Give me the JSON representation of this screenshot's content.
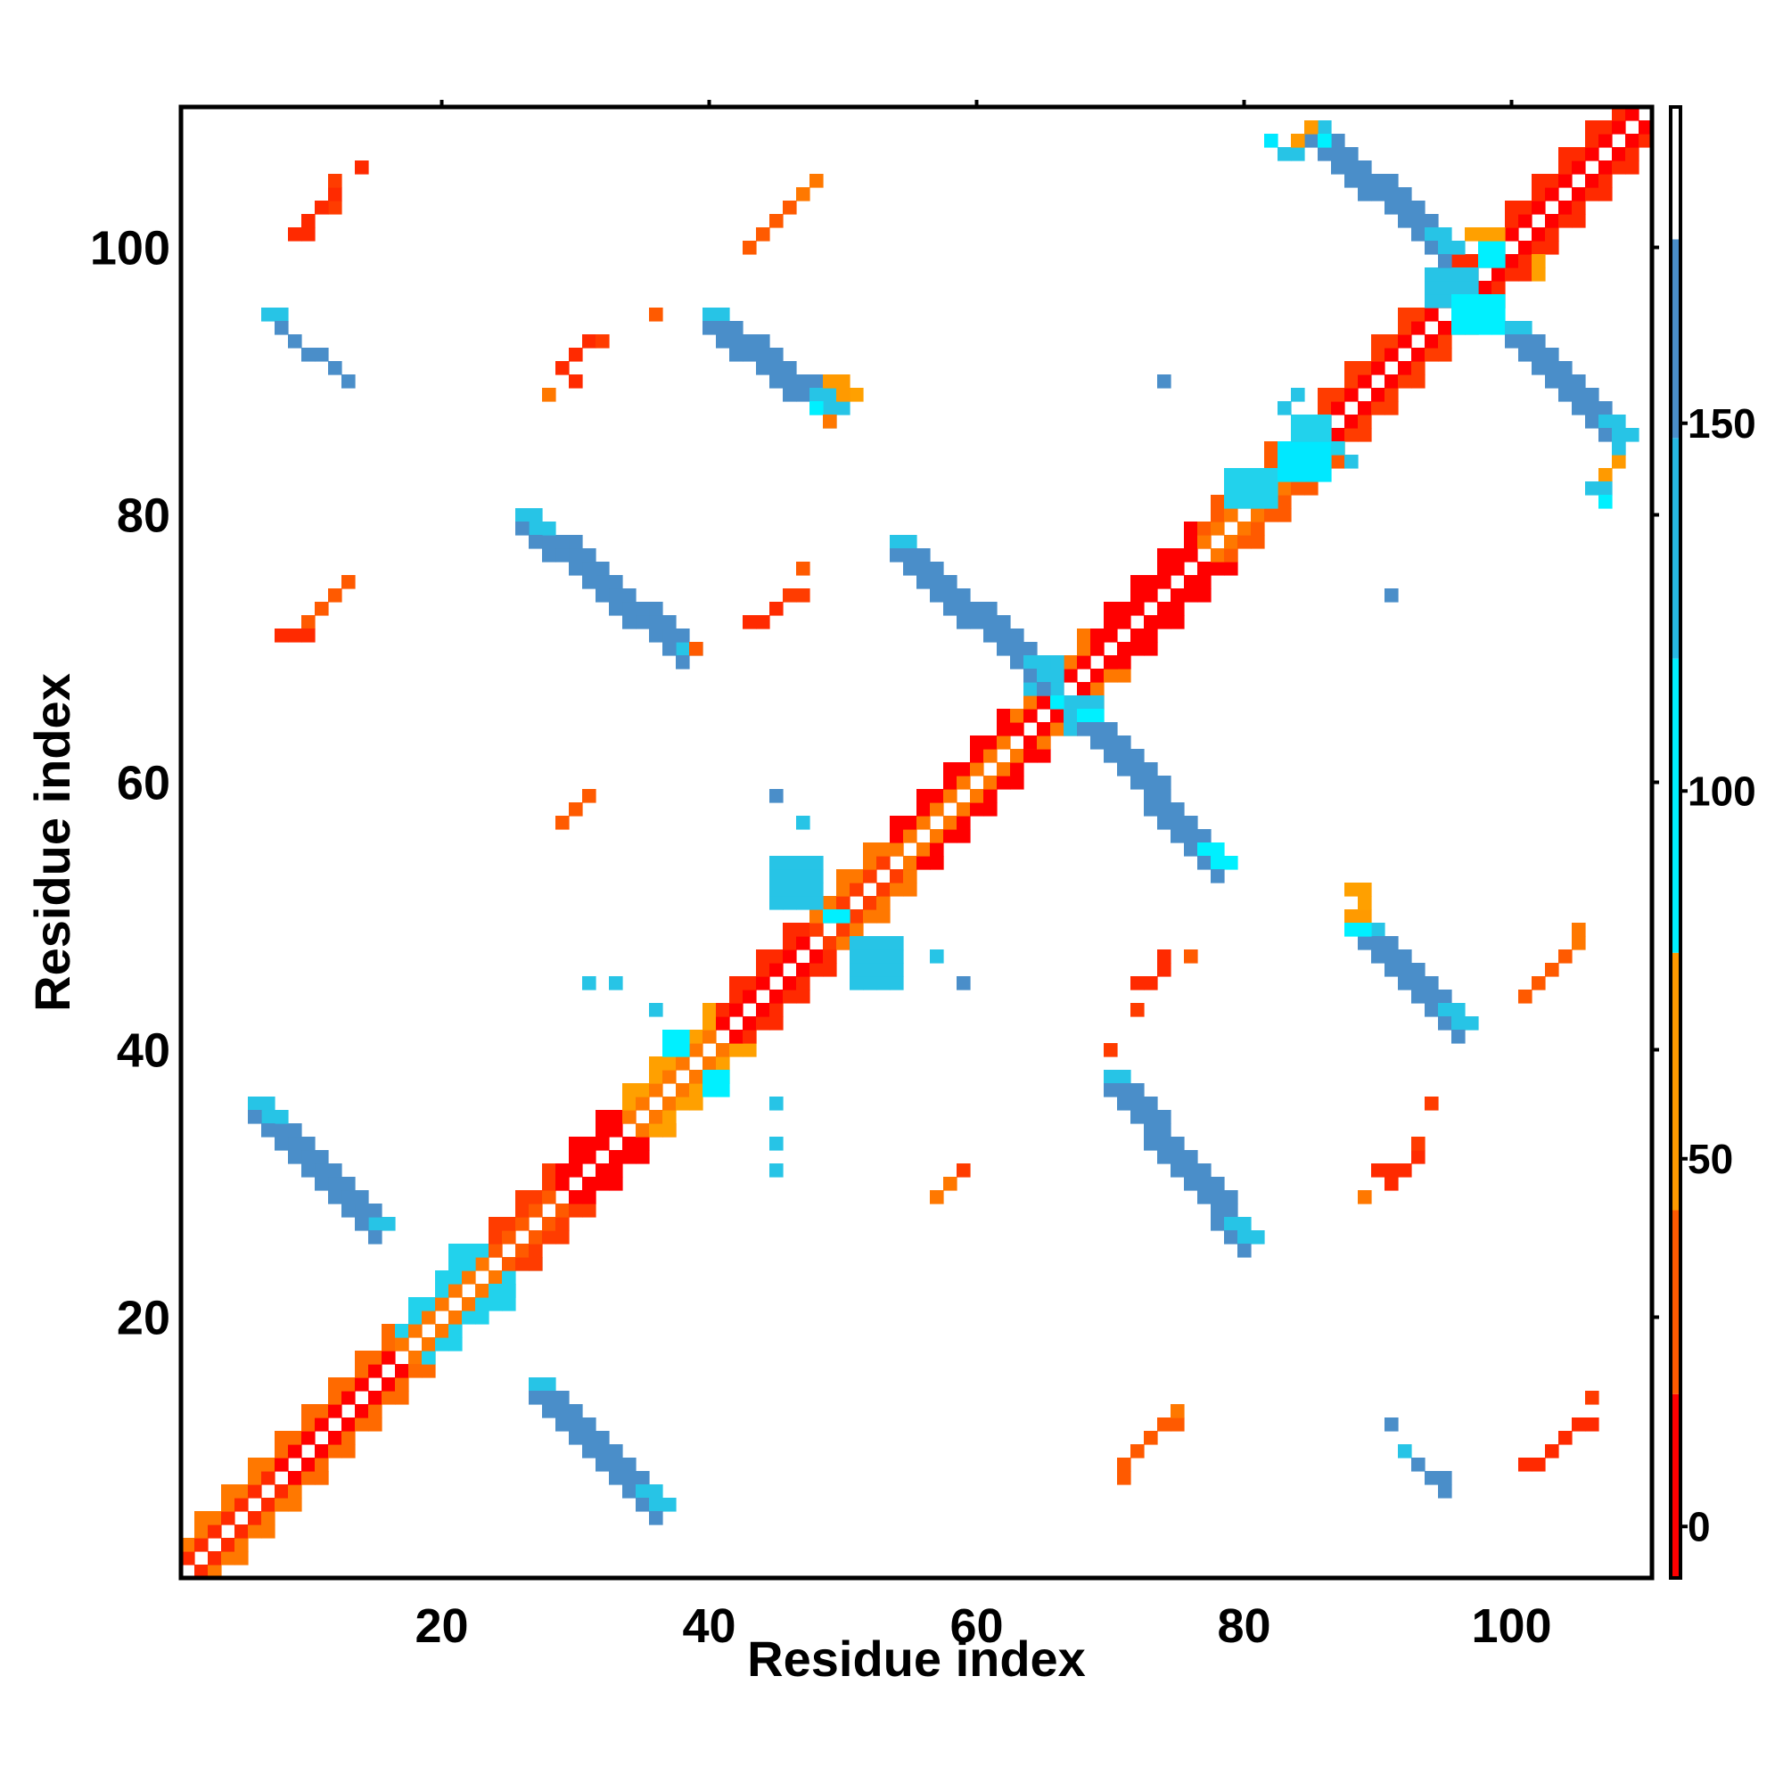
{
  "chart_data": {
    "type": "heatmap",
    "title": "",
    "xlabel": "Residue index",
    "ylabel": "Residue index",
    "xlim": [
      1,
      110
    ],
    "ylim": [
      1,
      110
    ],
    "x_ticks": [
      20,
      40,
      60,
      80,
      100
    ],
    "y_ticks": [
      20,
      40,
      60,
      80,
      100
    ],
    "grid": false,
    "colorbar": {
      "ticks": [
        0,
        50,
        100,
        150
      ],
      "range": [
        -7,
        193
      ],
      "bands": [
        {
          "from": -7,
          "to": 18,
          "color": "#ff0000"
        },
        {
          "from": 18,
          "to": 43,
          "color": "#ff5a00"
        },
        {
          "from": 43,
          "to": 78,
          "color": "#ff9a00"
        },
        {
          "from": 78,
          "to": 118,
          "color": "#00f0ff"
        },
        {
          "from": 118,
          "to": 148,
          "color": "#27b8e3"
        },
        {
          "from": 148,
          "to": 175,
          "color": "#4a8ec9"
        },
        {
          "from": 175,
          "to": 193,
          "color": "#ffffff"
        }
      ]
    },
    "colors": {
      "red": "#ff0000",
      "red_orange": "#ff3c00",
      "orange": "#ff7800",
      "amber": "#ffa000",
      "cyan": "#00e8ff",
      "light_blue": "#2cc0e4",
      "steel_blue": "#4a8ec9"
    },
    "diagonal_segments": [
      {
        "from": 1,
        "to": 8,
        "c1": "#ff2a00",
        "c2": "#ff7800"
      },
      {
        "from": 8,
        "to": 17,
        "c1": "#ff0000",
        "c2": "#ff6a00"
      },
      {
        "from": 17,
        "to": 24,
        "c1": "#ff7800",
        "c2": "#22d2ec"
      },
      {
        "from": 24,
        "to": 29,
        "c1": "#ff5a00",
        "c2": "#ff3c00"
      },
      {
        "from": 29,
        "to": 34,
        "c1": "#ff0000",
        "c2": "#ff0000"
      },
      {
        "from": 34,
        "to": 41,
        "c1": "#ff7800",
        "c2": "#ffa000"
      },
      {
        "from": 41,
        "to": 48,
        "c1": "#ff0000",
        "c2": "#ff2a00"
      },
      {
        "from": 48,
        "to": 54,
        "c1": "#ff3c00",
        "c2": "#ff7800"
      },
      {
        "from": 54,
        "to": 63,
        "c1": "#ff7800",
        "c2": "#ff0000"
      },
      {
        "from": 63,
        "to": 69,
        "c1": "#ff0000",
        "c2": "#ff7800"
      },
      {
        "from": 69,
        "to": 77,
        "c1": "#ff0000",
        "c2": "#ff0000"
      },
      {
        "from": 77,
        "to": 85,
        "c1": "#ff7800",
        "c2": "#ff5a00"
      },
      {
        "from": 85,
        "to": 95,
        "c1": "#ff0000",
        "c2": "#ff3c00"
      },
      {
        "from": 95,
        "to": 110,
        "c1": "#ff0000",
        "c2": "#ff2a00"
      }
    ],
    "diagonal_blobs": [
      {
        "x": 21,
        "y": 24,
        "w": 2,
        "h": 2,
        "color": "#22d2ec"
      },
      {
        "x": 24,
        "y": 21,
        "w": 2,
        "h": 2,
        "color": "#22d2ec"
      },
      {
        "x": 37,
        "y": 40,
        "w": 2,
        "h": 2,
        "color": "#00f0ff"
      },
      {
        "x": 40,
        "y": 37,
        "w": 2,
        "h": 2,
        "color": "#00f0ff"
      },
      {
        "x": 45,
        "y": 51,
        "w": 4,
        "h": 4,
        "color": "#27c4e6"
      },
      {
        "x": 51,
        "y": 45,
        "w": 4,
        "h": 4,
        "color": "#27c4e6"
      },
      {
        "x": 49,
        "y": 50,
        "w": 2,
        "h": 1,
        "color": "#00f0ff"
      },
      {
        "x": 64,
        "y": 67,
        "w": 3,
        "h": 3,
        "color": "#27c4e6"
      },
      {
        "x": 67,
        "y": 64,
        "w": 3,
        "h": 3,
        "color": "#27c4e6"
      },
      {
        "x": 66,
        "y": 66,
        "w": 1,
        "h": 1,
        "color": "#00f0ff"
      },
      {
        "x": 79,
        "y": 81,
        "w": 4,
        "h": 3,
        "color": "#22d2ec"
      },
      {
        "x": 83,
        "y": 83,
        "w": 4,
        "h": 3,
        "color": "#00e8ff"
      },
      {
        "x": 84,
        "y": 86,
        "w": 3,
        "h": 2,
        "color": "#22d2ec"
      },
      {
        "x": 94,
        "y": 96,
        "w": 4,
        "h": 3,
        "color": "#27c4e6"
      },
      {
        "x": 96,
        "y": 94,
        "w": 4,
        "h": 3,
        "color": "#00f0ff"
      },
      {
        "x": 98,
        "y": 99,
        "w": 2,
        "h": 2,
        "color": "#00f0ff"
      },
      {
        "x": 97,
        "y": 101,
        "w": 3,
        "h": 1,
        "color": "#ffa000"
      },
      {
        "x": 102,
        "y": 98,
        "w": 1,
        "h": 2,
        "color": "#ffa000"
      }
    ],
    "strands": [
      {
        "x0": 27,
        "y0": 15,
        "x1": 36,
        "y1": 6,
        "color": "#4a8ec9",
        "end": "#27c4e6"
      },
      {
        "x0": 15,
        "y0": 27,
        "x1": 6,
        "y1": 36,
        "color": "#4a8ec9",
        "end": "#27c4e6"
      },
      {
        "x0": 70,
        "y0": 38,
        "x1": 80,
        "y1": 26,
        "color": "#4a8ec9",
        "end": "#27c4e6"
      },
      {
        "x0": 38,
        "y0": 70,
        "x1": 26,
        "y1": 80,
        "color": "#4a8ec9",
        "end": "#27c4e6"
      },
      {
        "x0": 89,
        "y0": 49,
        "x1": 96,
        "y1": 42,
        "color": "#4a8ec9",
        "end": "#27c4e6"
      },
      {
        "x0": 40,
        "y0": 95,
        "x1": 49,
        "y1": 88,
        "color": "#4a8ec9",
        "end": "#27c4e6"
      },
      {
        "x0": 54,
        "y0": 78,
        "x1": 65,
        "y1": 68,
        "color": "#4a8ec9",
        "end": "#27c4e6"
      },
      {
        "x0": 68,
        "y0": 65,
        "x1": 78,
        "y1": 54,
        "color": "#4a8ec9",
        "end": "#00f0ff"
      },
      {
        "x0": 85,
        "y0": 109,
        "x1": 95,
        "y1": 100,
        "color": "#4a8ec9",
        "end": "#27c4e6"
      },
      {
        "x0": 100,
        "y0": 94,
        "x1": 108,
        "y1": 86,
        "color": "#4a8ec9",
        "end": "#27c4e6"
      }
    ],
    "points": [
      [
        12,
        103,
        "#ff3c00"
      ],
      [
        12,
        104,
        "#ff2a00"
      ],
      [
        11,
        103,
        "#ff2a00"
      ],
      [
        10,
        102,
        "#ff2a00"
      ],
      [
        9,
        101,
        "#ff2a00"
      ],
      [
        10,
        101,
        "#ff2a00"
      ],
      [
        14,
        106,
        "#ff2a00"
      ],
      [
        12,
        105,
        "#ff3c00"
      ],
      [
        44,
        101,
        "#ff5a00"
      ],
      [
        45,
        102,
        "#ff5a00"
      ],
      [
        46,
        103,
        "#ff5a00"
      ],
      [
        47,
        104,
        "#ff7800"
      ],
      [
        48,
        105,
        "#ff7800"
      ],
      [
        43,
        100,
        "#ff5a00"
      ],
      [
        30,
        92,
        "#ff2a00"
      ],
      [
        31,
        93,
        "#ff2a00"
      ],
      [
        32,
        93,
        "#ff3c00"
      ],
      [
        29,
        91,
        "#ff2a00"
      ],
      [
        30,
        90,
        "#ff2a00"
      ],
      [
        28,
        89,
        "#ff7800"
      ],
      [
        36,
        95,
        "#ff5a00"
      ],
      [
        7,
        95,
        "#27c4e6"
      ],
      [
        8,
        95,
        "#27c4e6"
      ],
      [
        8,
        94,
        "#4a8ec9"
      ],
      [
        9,
        93,
        "#4a8ec9"
      ],
      [
        10,
        92,
        "#4a8ec9"
      ],
      [
        11,
        92,
        "#4a8ec9"
      ],
      [
        12,
        91,
        "#4a8ec9"
      ],
      [
        13,
        90,
        "#4a8ec9"
      ],
      [
        11,
        73,
        "#ff5a00"
      ],
      [
        12,
        74,
        "#ff5a00"
      ],
      [
        13,
        75,
        "#ff5a00"
      ],
      [
        10,
        72,
        "#ff5a00"
      ],
      [
        8,
        71,
        "#ff2a00"
      ],
      [
        9,
        71,
        "#ff2a00"
      ],
      [
        10,
        71,
        "#ff2a00"
      ],
      [
        44,
        72,
        "#ff2a00"
      ],
      [
        45,
        73,
        "#ff2a00"
      ],
      [
        46,
        74,
        "#ff3c00"
      ],
      [
        47,
        74,
        "#ff3c00"
      ],
      [
        43,
        72,
        "#ff2a00"
      ],
      [
        47,
        76,
        "#ff5a00"
      ],
      [
        39,
        70,
        "#ff5a00"
      ],
      [
        29,
        57,
        "#ff5a00"
      ],
      [
        30,
        58,
        "#ff5a00"
      ],
      [
        31,
        59,
        "#ff5a00"
      ],
      [
        45,
        59,
        "#4a8ec9"
      ],
      [
        47,
        57,
        "#27c4e6"
      ],
      [
        31,
        45,
        "#27c4e6"
      ],
      [
        33,
        45,
        "#27c4e6"
      ],
      [
        36,
        43,
        "#27c4e6"
      ],
      [
        57,
        47,
        "#27c4e6"
      ],
      [
        59,
        45,
        "#4a8ec9"
      ],
      [
        45,
        36,
        "#27c4e6"
      ],
      [
        45,
        33,
        "#27c4e6"
      ],
      [
        45,
        31,
        "#27c4e6"
      ],
      [
        72,
        45,
        "#ff2a00"
      ],
      [
        73,
        45,
        "#ff2a00"
      ],
      [
        74,
        46,
        "#ff2a00"
      ],
      [
        74,
        47,
        "#ff2a00"
      ],
      [
        72,
        43,
        "#ff3c00"
      ],
      [
        76,
        47,
        "#ff5a00"
      ],
      [
        70,
        40,
        "#ff3c00"
      ],
      [
        57,
        29,
        "#ff7800"
      ],
      [
        58,
        30,
        "#ff7800"
      ],
      [
        59,
        31,
        "#ff3c00"
      ],
      [
        102,
        45,
        "#ff5a00"
      ],
      [
        103,
        46,
        "#ff5a00"
      ],
      [
        104,
        47,
        "#ff5a00"
      ],
      [
        105,
        48,
        "#ff7800"
      ],
      [
        105,
        49,
        "#ff7800"
      ],
      [
        101,
        44,
        "#ff5a00"
      ],
      [
        94,
        36,
        "#ff3c00"
      ],
      [
        91,
        31,
        "#ff2a00"
      ],
      [
        92,
        31,
        "#ff2a00"
      ],
      [
        93,
        32,
        "#ff2a00"
      ],
      [
        93,
        33,
        "#ff3c00"
      ],
      [
        90,
        31,
        "#ff2a00"
      ],
      [
        91,
        30,
        "#ff2a00"
      ],
      [
        89,
        29,
        "#ff7800"
      ],
      [
        72,
        10,
        "#ff5a00"
      ],
      [
        73,
        11,
        "#ff5a00"
      ],
      [
        74,
        12,
        "#ff5a00"
      ],
      [
        75,
        12,
        "#ff5a00"
      ],
      [
        75,
        13,
        "#ff7800"
      ],
      [
        71,
        9,
        "#ff5a00"
      ],
      [
        71,
        8,
        "#ff5a00"
      ],
      [
        102,
        9,
        "#ff2a00"
      ],
      [
        103,
        10,
        "#ff2a00"
      ],
      [
        104,
        11,
        "#ff2a00"
      ],
      [
        105,
        12,
        "#ff2a00"
      ],
      [
        106,
        12,
        "#ff2a00"
      ],
      [
        101,
        9,
        "#ff2a00"
      ],
      [
        106,
        14,
        "#ff3c00"
      ],
      [
        91,
        12,
        "#4a8ec9"
      ],
      [
        92,
        10,
        "#27c4e6"
      ],
      [
        93,
        9,
        "#4a8ec9"
      ],
      [
        94,
        8,
        "#4a8ec9"
      ],
      [
        95,
        8,
        "#4a8ec9"
      ],
      [
        95,
        7,
        "#4a8ec9"
      ],
      [
        74,
        90,
        "#4a8ec9"
      ],
      [
        91,
        74,
        "#4a8ec9"
      ],
      [
        88,
        50,
        "#ff9a00"
      ],
      [
        89,
        50,
        "#ff9a00"
      ],
      [
        89,
        51,
        "#ffa000"
      ],
      [
        89,
        52,
        "#ffa000"
      ],
      [
        88,
        52,
        "#ffa000"
      ],
      [
        88,
        49,
        "#00f0ff"
      ],
      [
        89,
        49,
        "#00f0ff"
      ],
      [
        49,
        90,
        "#ff9a00"
      ],
      [
        50,
        90,
        "#ff9a00"
      ],
      [
        51,
        89,
        "#ffa000"
      ],
      [
        50,
        89,
        "#ff9a00"
      ],
      [
        48,
        88,
        "#00f0ff"
      ],
      [
        49,
        87,
        "#ff7800"
      ],
      [
        107,
        83,
        "#ff9a00"
      ],
      [
        108,
        84,
        "#ff9a00"
      ],
      [
        107,
        82,
        "#27c4e6"
      ],
      [
        106,
        82,
        "#27c4e6"
      ],
      [
        107,
        81,
        "#00f0ff"
      ],
      [
        108,
        85,
        "#27c4e6"
      ],
      [
        82,
        108,
        "#00e8ff"
      ],
      [
        83,
        107,
        "#27c4e6"
      ],
      [
        84,
        107,
        "#27c4e6"
      ],
      [
        84,
        108,
        "#ff9a00"
      ],
      [
        85,
        109,
        "#ff9a00"
      ],
      [
        86,
        108,
        "#00f0ff"
      ],
      [
        88,
        84,
        "#27c4e6"
      ],
      [
        87,
        85,
        "#22d2ec"
      ],
      [
        84,
        89,
        "#27c4e6"
      ],
      [
        83,
        88,
        "#27c4e6"
      ]
    ]
  }
}
